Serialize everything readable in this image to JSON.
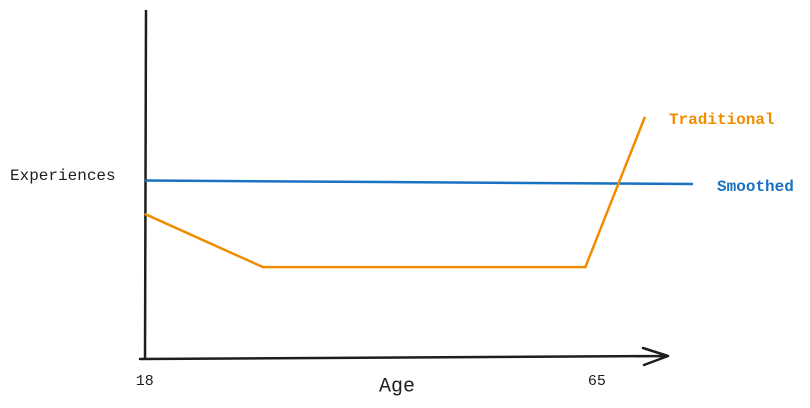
{
  "chart_data": {
    "type": "line",
    "x_label": "Age",
    "y_label": "Experiences",
    "xlim": [
      17.5,
      72.5
    ],
    "xticks": [
      18,
      65
    ],
    "ylim": [
      0,
      100
    ],
    "series": [
      {
        "name": "Smoothed",
        "color": "#1971c2",
        "x": [
          18,
          75
        ],
        "values": [
          51,
          50
        ]
      },
      {
        "name": "Traditional",
        "color": "#f08c00",
        "x": [
          18,
          30.3,
          63.8,
          70
        ],
        "values": [
          41.4,
          26.1,
          26.1,
          69.3
        ]
      }
    ]
  }
}
